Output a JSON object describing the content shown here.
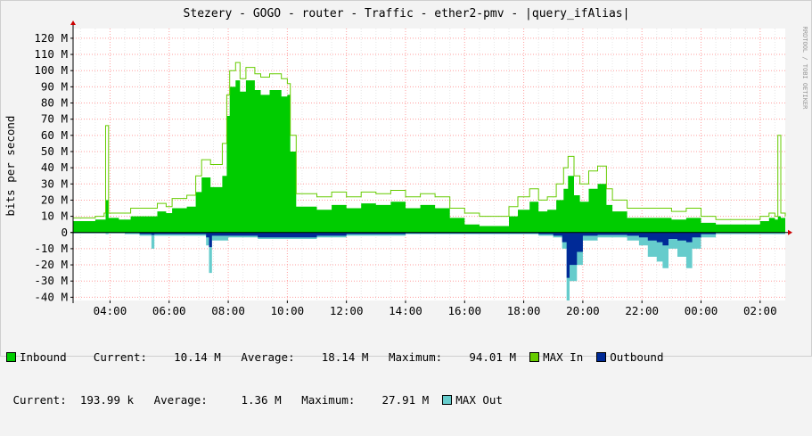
{
  "chart_data": {
    "type": "area",
    "title": "Stezery - GOGO - router - Traffic - ether2-pmv - |query_ifAlias|",
    "watermark": "RRDTOOL / TOBI OETIKER",
    "ylabel": "bits per second",
    "ylim": [
      -42,
      126
    ],
    "y_ticks": [
      {
        "value": 120,
        "label": "120 M"
      },
      {
        "value": 110,
        "label": "110 M"
      },
      {
        "value": 100,
        "label": "100 M"
      },
      {
        "value": 90,
        "label": "90 M"
      },
      {
        "value": 80,
        "label": "80 M"
      },
      {
        "value": 70,
        "label": "70 M"
      },
      {
        "value": 60,
        "label": "60 M"
      },
      {
        "value": 50,
        "label": "50 M"
      },
      {
        "value": 40,
        "label": "40 M"
      },
      {
        "value": 30,
        "label": "30 M"
      },
      {
        "value": 20,
        "label": "20 M"
      },
      {
        "value": 10,
        "label": "10 M"
      },
      {
        "value": 0,
        "label": "0"
      },
      {
        "value": -10,
        "label": "-10 M"
      },
      {
        "value": -20,
        "label": "-20 M"
      },
      {
        "value": -30,
        "label": "-30 M"
      },
      {
        "value": -40,
        "label": "-40 M"
      }
    ],
    "xlim": [
      2.75,
      26.85
    ],
    "x_ticks": [
      {
        "value": 4,
        "label": "04:00"
      },
      {
        "value": 6,
        "label": "06:00"
      },
      {
        "value": 8,
        "label": "08:00"
      },
      {
        "value": 10,
        "label": "10:00"
      },
      {
        "value": 12,
        "label": "12:00"
      },
      {
        "value": 14,
        "label": "14:00"
      },
      {
        "value": 16,
        "label": "16:00"
      },
      {
        "value": 18,
        "label": "18:00"
      },
      {
        "value": 20,
        "label": "20:00"
      },
      {
        "value": 22,
        "label": "22:00"
      },
      {
        "value": 24,
        "label": "00:00"
      },
      {
        "value": 26,
        "label": "02:00"
      }
    ],
    "grid": true,
    "colors": {
      "inbound": "#00cc00",
      "max_in": "#66cc00",
      "outbound": "#002a97",
      "max_out": "#66cccc",
      "grid": "#ff9f9f",
      "axis_arrow": "#cc0000"
    },
    "series": [
      {
        "name": "MAX In",
        "values": [
          [
            2.75,
            9
          ],
          [
            3.5,
            10
          ],
          [
            3.8,
            12
          ],
          [
            3.85,
            66
          ],
          [
            3.95,
            12
          ],
          [
            4.3,
            12
          ],
          [
            4.7,
            15
          ],
          [
            5.2,
            15
          ],
          [
            5.6,
            18
          ],
          [
            5.9,
            16
          ],
          [
            6.1,
            21
          ],
          [
            6.6,
            23
          ],
          [
            6.9,
            35
          ],
          [
            7.1,
            45
          ],
          [
            7.4,
            42
          ],
          [
            7.8,
            55
          ],
          [
            7.95,
            85
          ],
          [
            8.05,
            100
          ],
          [
            8.25,
            105
          ],
          [
            8.4,
            95
          ],
          [
            8.6,
            102
          ],
          [
            8.9,
            98
          ],
          [
            9.1,
            96
          ],
          [
            9.4,
            98
          ],
          [
            9.8,
            95
          ],
          [
            10,
            92
          ],
          [
            10.1,
            60
          ],
          [
            10.3,
            24
          ],
          [
            11,
            22
          ],
          [
            11.5,
            25
          ],
          [
            12,
            22
          ],
          [
            12.5,
            25
          ],
          [
            13,
            24
          ],
          [
            13.5,
            26
          ],
          [
            14,
            22
          ],
          [
            14.5,
            24
          ],
          [
            15,
            22
          ],
          [
            15.5,
            15
          ],
          [
            16,
            12
          ],
          [
            16.5,
            10
          ],
          [
            17,
            10
          ],
          [
            17.5,
            16
          ],
          [
            17.8,
            22
          ],
          [
            18.2,
            27
          ],
          [
            18.5,
            20
          ],
          [
            18.8,
            22
          ],
          [
            19.1,
            30
          ],
          [
            19.35,
            40
          ],
          [
            19.5,
            47
          ],
          [
            19.7,
            35
          ],
          [
            19.9,
            30
          ],
          [
            20.2,
            38
          ],
          [
            20.5,
            41
          ],
          [
            20.8,
            27
          ],
          [
            21,
            20
          ],
          [
            21.5,
            15
          ],
          [
            22,
            15
          ],
          [
            22.5,
            15
          ],
          [
            23,
            13
          ],
          [
            23.5,
            15
          ],
          [
            24,
            10
          ],
          [
            24.5,
            8
          ],
          [
            25,
            8
          ],
          [
            25.5,
            8
          ],
          [
            26,
            10
          ],
          [
            26.3,
            12
          ],
          [
            26.5,
            10
          ],
          [
            26.6,
            60
          ],
          [
            26.7,
            12
          ],
          [
            26.85,
            10
          ]
        ]
      },
      {
        "name": "Inbound",
        "values": [
          [
            2.75,
            7
          ],
          [
            3.5,
            8
          ],
          [
            3.8,
            8
          ],
          [
            3.85,
            20
          ],
          [
            3.95,
            9
          ],
          [
            4.3,
            8
          ],
          [
            4.7,
            10
          ],
          [
            5.2,
            10
          ],
          [
            5.6,
            13
          ],
          [
            5.9,
            12
          ],
          [
            6.1,
            15
          ],
          [
            6.6,
            16
          ],
          [
            6.9,
            25
          ],
          [
            7.1,
            34
          ],
          [
            7.4,
            28
          ],
          [
            7.8,
            35
          ],
          [
            7.95,
            72
          ],
          [
            8.05,
            90
          ],
          [
            8.25,
            94
          ],
          [
            8.4,
            87
          ],
          [
            8.6,
            94
          ],
          [
            8.9,
            88
          ],
          [
            9.1,
            85
          ],
          [
            9.4,
            88
          ],
          [
            9.8,
            84
          ],
          [
            10,
            85
          ],
          [
            10.1,
            50
          ],
          [
            10.3,
            16
          ],
          [
            11,
            14
          ],
          [
            11.5,
            17
          ],
          [
            12,
            15
          ],
          [
            12.5,
            18
          ],
          [
            13,
            17
          ],
          [
            13.5,
            19
          ],
          [
            14,
            15
          ],
          [
            14.5,
            17
          ],
          [
            15,
            15
          ],
          [
            15.5,
            9
          ],
          [
            16,
            5
          ],
          [
            16.5,
            4
          ],
          [
            17,
            4
          ],
          [
            17.5,
            10
          ],
          [
            17.8,
            14
          ],
          [
            18.2,
            19
          ],
          [
            18.5,
            13
          ],
          [
            18.8,
            14
          ],
          [
            19.1,
            20
          ],
          [
            19.35,
            27
          ],
          [
            19.5,
            35
          ],
          [
            19.7,
            23
          ],
          [
            19.9,
            19
          ],
          [
            20.2,
            27
          ],
          [
            20.5,
            30
          ],
          [
            20.8,
            17
          ],
          [
            21,
            13
          ],
          [
            21.5,
            9
          ],
          [
            22,
            9
          ],
          [
            22.5,
            9
          ],
          [
            23,
            8
          ],
          [
            23.5,
            9
          ],
          [
            24,
            6
          ],
          [
            24.5,
            5
          ],
          [
            25,
            5
          ],
          [
            25.5,
            5
          ],
          [
            26,
            7
          ],
          [
            26.3,
            9
          ],
          [
            26.5,
            8
          ],
          [
            26.6,
            10
          ],
          [
            26.7,
            9
          ],
          [
            26.85,
            8
          ]
        ]
      },
      {
        "name": "MAX Out",
        "values": [
          [
            2.75,
            -0.5
          ],
          [
            3.8,
            -0.5
          ],
          [
            3.85,
            -1
          ],
          [
            3.95,
            -0.5
          ],
          [
            4.5,
            -1
          ],
          [
            5,
            -2
          ],
          [
            5.4,
            -10
          ],
          [
            5.5,
            -2
          ],
          [
            6,
            -2
          ],
          [
            7,
            -2
          ],
          [
            7.25,
            -8
          ],
          [
            7.35,
            -25
          ],
          [
            7.45,
            -5
          ],
          [
            8,
            -3
          ],
          [
            9,
            -4
          ],
          [
            10,
            -4
          ],
          [
            11,
            -3
          ],
          [
            12,
            -2
          ],
          [
            13,
            -2
          ],
          [
            14,
            -1
          ],
          [
            15,
            -1
          ],
          [
            16,
            -1
          ],
          [
            17,
            -1
          ],
          [
            18,
            -1
          ],
          [
            18.5,
            -2
          ],
          [
            19,
            -3
          ],
          [
            19.3,
            -10
          ],
          [
            19.45,
            -42
          ],
          [
            19.55,
            -30
          ],
          [
            19.8,
            -20
          ],
          [
            20,
            -5
          ],
          [
            20.5,
            -3
          ],
          [
            21,
            -3
          ],
          [
            21.5,
            -5
          ],
          [
            21.9,
            -8
          ],
          [
            22.2,
            -15
          ],
          [
            22.5,
            -18
          ],
          [
            22.7,
            -22
          ],
          [
            22.9,
            -10
          ],
          [
            23.2,
            -15
          ],
          [
            23.5,
            -22
          ],
          [
            23.7,
            -10
          ],
          [
            24,
            -3
          ],
          [
            24.5,
            -1
          ],
          [
            25,
            -1
          ],
          [
            26,
            -1
          ],
          [
            26.85,
            -1
          ]
        ]
      },
      {
        "name": "Outbound",
        "values": [
          [
            2.75,
            -0.2
          ],
          [
            3.8,
            -0.2
          ],
          [
            4.5,
            -0.4
          ],
          [
            5,
            -1
          ],
          [
            5.4,
            -1.5
          ],
          [
            5.5,
            -1
          ],
          [
            6,
            -1
          ],
          [
            7,
            -1
          ],
          [
            7.25,
            -3
          ],
          [
            7.35,
            -9
          ],
          [
            7.45,
            -2
          ],
          [
            8,
            -2
          ],
          [
            9,
            -3
          ],
          [
            10,
            -3
          ],
          [
            11,
            -2
          ],
          [
            12,
            -1
          ],
          [
            13,
            -1
          ],
          [
            14,
            -0.5
          ],
          [
            15,
            -0.5
          ],
          [
            16,
            -0.5
          ],
          [
            17,
            -0.5
          ],
          [
            18,
            -0.5
          ],
          [
            18.5,
            -1
          ],
          [
            19,
            -2
          ],
          [
            19.3,
            -6
          ],
          [
            19.45,
            -28
          ],
          [
            19.55,
            -20
          ],
          [
            19.8,
            -12
          ],
          [
            20,
            -2
          ],
          [
            20.5,
            -1.5
          ],
          [
            21,
            -1.5
          ],
          [
            21.5,
            -2
          ],
          [
            21.9,
            -3
          ],
          [
            22.2,
            -5
          ],
          [
            22.5,
            -6
          ],
          [
            22.7,
            -8
          ],
          [
            22.9,
            -4
          ],
          [
            23.2,
            -5
          ],
          [
            23.5,
            -6
          ],
          [
            23.7,
            -3
          ],
          [
            24,
            -1
          ],
          [
            24.5,
            -0.3
          ],
          [
            25,
            -0.3
          ],
          [
            26,
            -0.3
          ],
          [
            26.85,
            -0.3
          ]
        ]
      }
    ]
  },
  "legend": {
    "row1": {
      "inbound_label": "Inbound",
      "current_label": "Current:",
      "current_value": "10.14 M",
      "average_label": "Average:",
      "average_value": "18.14 M",
      "maximum_label": "Maximum:",
      "maximum_value": "94.01 M",
      "max_in_label": "MAX In",
      "outbound_label": "Outbound"
    },
    "row2": {
      "current_label": "Current:",
      "current_value": "193.99 k",
      "average_label": "Average:",
      "average_value": "1.36 M",
      "maximum_label": "Maximum:",
      "maximum_value": "27.91 M",
      "max_out_label": "MAX Out"
    }
  }
}
